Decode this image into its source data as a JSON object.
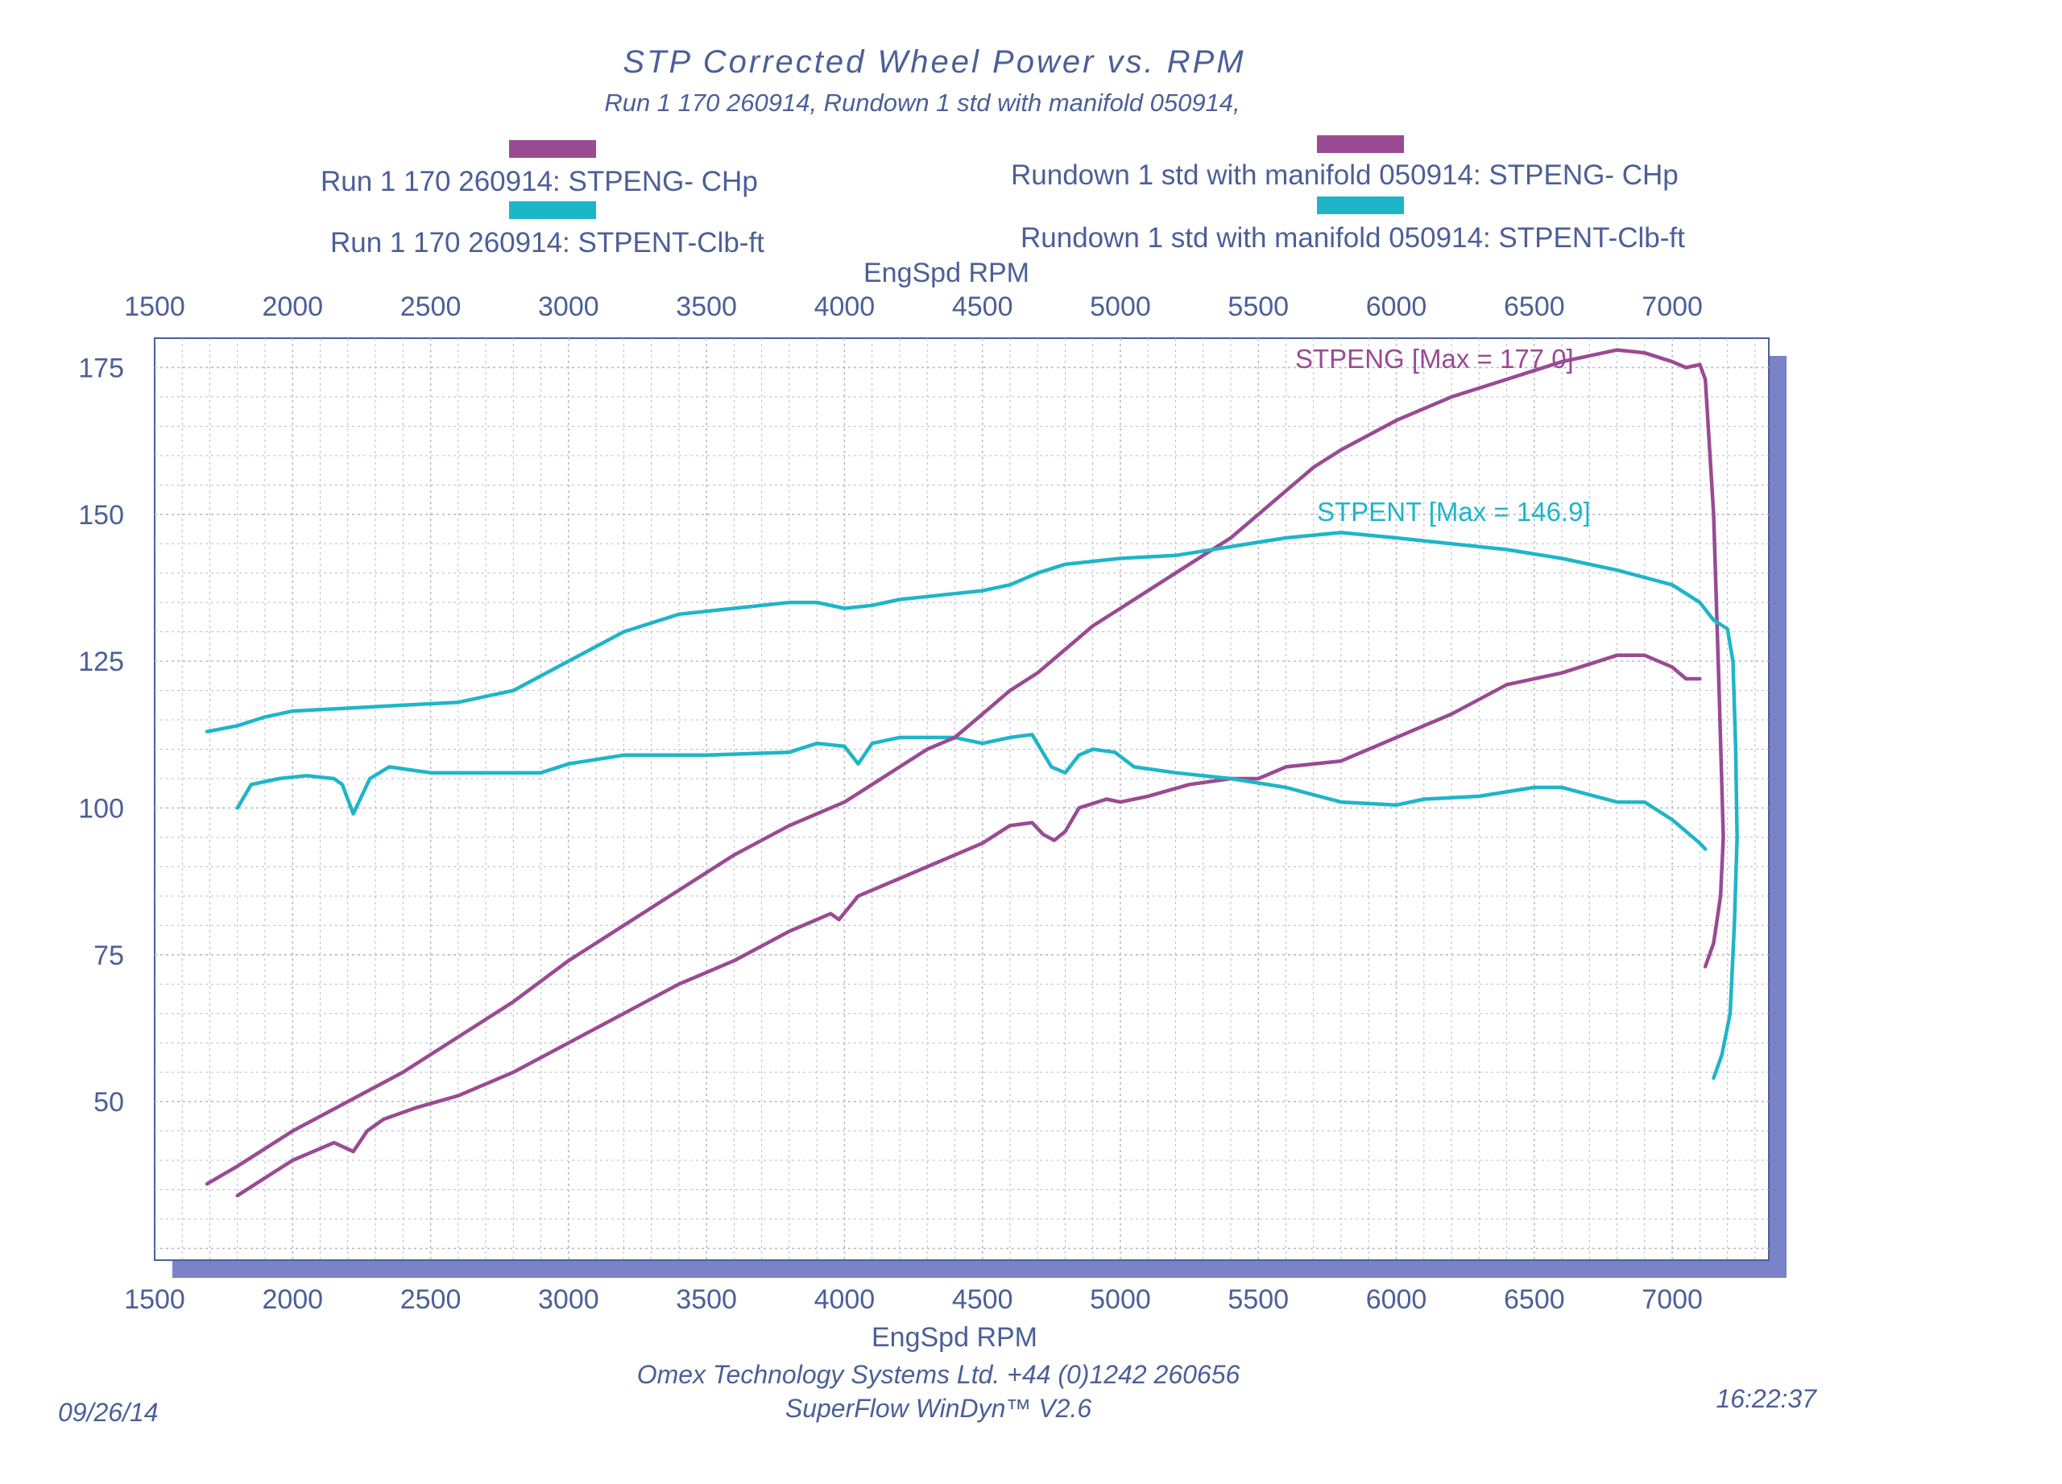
{
  "header": {
    "title": "STP  Corrected  Wheel  Power  vs.  RPM",
    "subtitle": "Run 1 170 260914, Rundown 1 std with manifold 050914,"
  },
  "legend": [
    {
      "label": "Run 1 170 260914: STPENG- CHp",
      "color": "#9a4a93"
    },
    {
      "label": "Run 1 170 260914: STPENT-Clb-ft",
      "color": "#1fb5c8"
    },
    {
      "label": "Rundown 1 std with manifold 050914: STPENG- CHp",
      "color": "#9a4a93"
    },
    {
      "label": "Rundown 1 std with manifold 050914: STPENT-Clb-ft",
      "color": "#1fb5c8"
    }
  ],
  "annotations": {
    "power_max": "STPENG [Max = 177.0]",
    "torque_max": "STPENT [Max = 146.9]"
  },
  "footer": {
    "date": "09/26/14",
    "company": "Omex Technology Systems Ltd. +44 (0)1242 260656",
    "software": "SuperFlow WinDyn™ V2.6",
    "time": "16:22:37"
  },
  "colors": {
    "power": "#9a4a93",
    "torque": "#1fb5c8",
    "frame": "#4b5f98",
    "shadow": "#7a82c8",
    "grid": "#b8bcc8"
  },
  "chart_data": {
    "type": "line",
    "title": "STP  Corrected  Wheel  Power  vs.  RPM",
    "xlabel": "EngSpd  RPM",
    "ylabel": "",
    "xlim": [
      1500,
      7350
    ],
    "ylim": [
      23,
      180
    ],
    "xticks": [
      1500,
      2000,
      2500,
      3000,
      3500,
      4000,
      4500,
      5000,
      5500,
      6000,
      6500,
      7000
    ],
    "yticks": [
      50,
      75,
      100,
      125,
      150,
      175
    ],
    "grid": true,
    "series": [
      {
        "name": "Run 1 170 260914: STPENG- CHp",
        "kind": "power",
        "points": [
          [
            1800,
            34
          ],
          [
            1900,
            37
          ],
          [
            2000,
            40
          ],
          [
            2100,
            42
          ],
          [
            2150,
            43
          ],
          [
            2220,
            41.5
          ],
          [
            2270,
            45
          ],
          [
            2330,
            47
          ],
          [
            2450,
            49
          ],
          [
            2600,
            51
          ],
          [
            2800,
            55
          ],
          [
            3000,
            60
          ],
          [
            3200,
            65
          ],
          [
            3400,
            70
          ],
          [
            3600,
            74
          ],
          [
            3800,
            79
          ],
          [
            3900,
            81
          ],
          [
            3950,
            82
          ],
          [
            3980,
            81
          ],
          [
            4050,
            85
          ],
          [
            4200,
            88
          ],
          [
            4400,
            92
          ],
          [
            4500,
            94
          ],
          [
            4600,
            97
          ],
          [
            4680,
            97.5
          ],
          [
            4720,
            95.5
          ],
          [
            4760,
            94.5
          ],
          [
            4800,
            96
          ],
          [
            4850,
            100
          ],
          [
            4950,
            101.5
          ],
          [
            5000,
            101
          ],
          [
            5100,
            102
          ],
          [
            5250,
            104
          ],
          [
            5400,
            105
          ],
          [
            5500,
            105
          ],
          [
            5600,
            107
          ],
          [
            5800,
            108
          ],
          [
            6000,
            112
          ],
          [
            6200,
            116
          ],
          [
            6400,
            121
          ],
          [
            6600,
            123
          ],
          [
            6800,
            126
          ],
          [
            6900,
            126
          ],
          [
            7000,
            124
          ],
          [
            7050,
            122
          ],
          [
            7100,
            122
          ]
        ]
      },
      {
        "name": "Run 1 170 260914: STPENT-Clb-ft",
        "kind": "torque",
        "points": [
          [
            1800,
            100
          ],
          [
            1850,
            104
          ],
          [
            1950,
            105
          ],
          [
            2050,
            105.5
          ],
          [
            2150,
            105
          ],
          [
            2180,
            104
          ],
          [
            2220,
            99
          ],
          [
            2280,
            105
          ],
          [
            2350,
            107
          ],
          [
            2500,
            106
          ],
          [
            2700,
            106
          ],
          [
            2900,
            106
          ],
          [
            3000,
            107.5
          ],
          [
            3200,
            109
          ],
          [
            3500,
            109
          ],
          [
            3800,
            109.5
          ],
          [
            3900,
            111
          ],
          [
            4000,
            110.5
          ],
          [
            4050,
            107.5
          ],
          [
            4100,
            111
          ],
          [
            4200,
            112
          ],
          [
            4400,
            112
          ],
          [
            4500,
            111
          ],
          [
            4600,
            112
          ],
          [
            4680,
            112.5
          ],
          [
            4750,
            107
          ],
          [
            4800,
            106
          ],
          [
            4850,
            109
          ],
          [
            4900,
            110
          ],
          [
            4980,
            109.5
          ],
          [
            5050,
            107
          ],
          [
            5200,
            106
          ],
          [
            5400,
            105
          ],
          [
            5600,
            103.5
          ],
          [
            5800,
            101
          ],
          [
            6000,
            100.5
          ],
          [
            6100,
            101.5
          ],
          [
            6300,
            102
          ],
          [
            6500,
            103.5
          ],
          [
            6600,
            103.5
          ],
          [
            6800,
            101
          ],
          [
            6900,
            101
          ],
          [
            7000,
            98
          ],
          [
            7050,
            96
          ],
          [
            7100,
            94
          ],
          [
            7120,
            93
          ]
        ]
      },
      {
        "name": "Rundown 1 std with manifold 050914: STPENG- CHp",
        "kind": "power",
        "points": [
          [
            1690,
            36
          ],
          [
            1800,
            39
          ],
          [
            2000,
            45
          ],
          [
            2200,
            50
          ],
          [
            2400,
            55
          ],
          [
            2600,
            61
          ],
          [
            2800,
            67
          ],
          [
            3000,
            74
          ],
          [
            3200,
            80
          ],
          [
            3400,
            86
          ],
          [
            3600,
            92
          ],
          [
            3800,
            97
          ],
          [
            3900,
            99
          ],
          [
            4000,
            101
          ],
          [
            4100,
            104
          ],
          [
            4200,
            107
          ],
          [
            4300,
            110
          ],
          [
            4400,
            112
          ],
          [
            4500,
            116
          ],
          [
            4600,
            120
          ],
          [
            4700,
            123
          ],
          [
            4800,
            127
          ],
          [
            4900,
            131
          ],
          [
            5000,
            134
          ],
          [
            5100,
            137
          ],
          [
            5200,
            140
          ],
          [
            5300,
            143
          ],
          [
            5400,
            146
          ],
          [
            5500,
            150
          ],
          [
            5600,
            154
          ],
          [
            5700,
            158
          ],
          [
            5800,
            161
          ],
          [
            6000,
            166
          ],
          [
            6200,
            170
          ],
          [
            6400,
            173
          ],
          [
            6600,
            176
          ],
          [
            6800,
            178
          ],
          [
            6900,
            177.5
          ],
          [
            7000,
            176
          ],
          [
            7050,
            175
          ],
          [
            7100,
            175.5
          ],
          [
            7120,
            173
          ],
          [
            7150,
            150
          ],
          [
            7170,
            120
          ],
          [
            7185,
            95
          ],
          [
            7175,
            85
          ],
          [
            7150,
            77
          ],
          [
            7120,
            73
          ]
        ]
      },
      {
        "name": "Rundown 1 std with manifold 050914: STPENT-Clb-ft",
        "kind": "torque",
        "points": [
          [
            1690,
            113
          ],
          [
            1800,
            114
          ],
          [
            1900,
            115.5
          ],
          [
            2000,
            116.5
          ],
          [
            2200,
            117
          ],
          [
            2400,
            117.5
          ],
          [
            2600,
            118
          ],
          [
            2800,
            120
          ],
          [
            3000,
            125
          ],
          [
            3200,
            130
          ],
          [
            3400,
            133
          ],
          [
            3600,
            134
          ],
          [
            3800,
            135
          ],
          [
            3900,
            135
          ],
          [
            4000,
            134
          ],
          [
            4100,
            134.5
          ],
          [
            4200,
            135.5
          ],
          [
            4300,
            136
          ],
          [
            4400,
            136.5
          ],
          [
            4500,
            137
          ],
          [
            4600,
            138
          ],
          [
            4700,
            140
          ],
          [
            4800,
            141.5
          ],
          [
            4900,
            142
          ],
          [
            5000,
            142.5
          ],
          [
            5200,
            143
          ],
          [
            5400,
            144.5
          ],
          [
            5600,
            146
          ],
          [
            5800,
            146.9
          ],
          [
            6000,
            146
          ],
          [
            6200,
            145
          ],
          [
            6400,
            144
          ],
          [
            6600,
            142.5
          ],
          [
            6800,
            140.5
          ],
          [
            7000,
            138
          ],
          [
            7100,
            135
          ],
          [
            7150,
            132
          ],
          [
            7200,
            130.5
          ],
          [
            7220,
            125
          ],
          [
            7230,
            110
          ],
          [
            7235,
            95
          ],
          [
            7225,
            80
          ],
          [
            7210,
            65
          ],
          [
            7180,
            58
          ],
          [
            7150,
            54
          ]
        ]
      }
    ]
  }
}
